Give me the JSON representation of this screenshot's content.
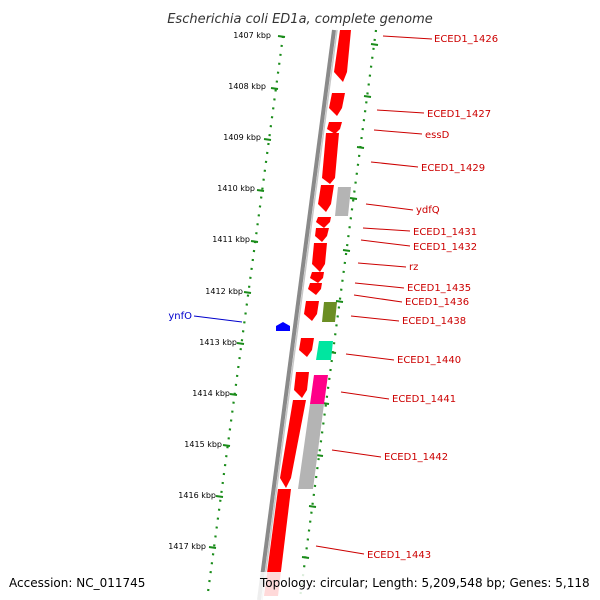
{
  "title": "Escherichia coli ED1a, complete genome",
  "accession": "Accession: NC_011745",
  "topology": "Topology: circular; Length: 5,209,548 bp; Genes: 5,118",
  "colors": {
    "cds_red": "#ff0000",
    "label_red": "#cc0000",
    "label_blue": "#0000cc",
    "gene_blue": "#0000ff",
    "gc_tick_green": "#1a8c1a",
    "backbone_gray": "#808080",
    "feature_gray": "#b4b4b4",
    "feature_olive": "#6b8e23",
    "feature_teal": "#00e6a0",
    "feature_magenta": "#ff0088"
  },
  "kbp_ticks": [
    "1407 kbp",
    "1408 kbp",
    "1409 kbp",
    "1410 kbp",
    "1411 kbp",
    "1412 kbp",
    "1413 kbp",
    "1414 kbp",
    "1415 kbp",
    "1416 kbp",
    "1417 kbp"
  ],
  "gene_labels_right": [
    "ECED1_1426",
    "ECED1_1427",
    "essD",
    "ECED1_1429",
    "ydfQ",
    "ECED1_1431",
    "ECED1_1432",
    "rz",
    "ECED1_1435",
    "ECED1_1436",
    "ECED1_1438",
    "ECED1_1440",
    "ECED1_1441",
    "ECED1_1442",
    "ECED1_1443"
  ],
  "gene_labels_left": [
    "ynfO"
  ]
}
